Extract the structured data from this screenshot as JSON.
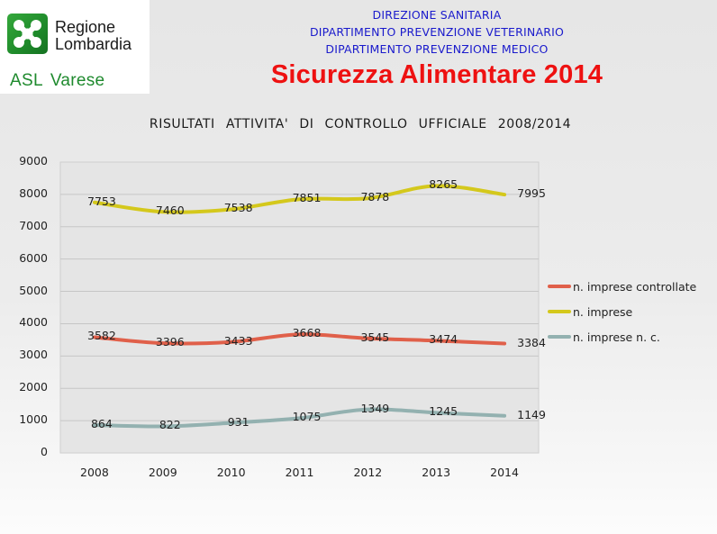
{
  "logo": {
    "line1": "Regione",
    "line2": "Lombardia",
    "asl": "ASL",
    "asl_city": "Varese",
    "brand_color": "#1f8a2e"
  },
  "header": {
    "lines": [
      "DIREZIONE SANITARIA",
      "DIPARTIMENTO PREVENZIONE VETERINARIO",
      "DIPARTIMENTO PREVENZIONE MEDICO"
    ],
    "title": "Sicurezza Alimentare 2014",
    "title_color": "#ee1111",
    "lines_color": "#1a1acc"
  },
  "chart_data": {
    "type": "line",
    "title": "RISULTATI  ATTIVITA'  DI  CONTROLLO  UFFICIALE  2008/2014",
    "xlabel": "",
    "ylabel": "",
    "ylim": [
      0,
      9000
    ],
    "yticks": [
      "0",
      "1000",
      "2000",
      "3000",
      "4000",
      "5000",
      "6000",
      "7000",
      "8000",
      "9000"
    ],
    "grid": true,
    "legend_position": "right",
    "categories": [
      "2008",
      "2009",
      "2010",
      "2011",
      "2012",
      "2013",
      "2014"
    ],
    "series": [
      {
        "name": "n. imprese controllate",
        "color": "#e0604a",
        "values": [
          3582,
          3396,
          3433,
          3668,
          3545,
          3474,
          3384
        ]
      },
      {
        "name": "n. imprese",
        "color": "#d4c81c",
        "values": [
          7753,
          7460,
          7538,
          7851,
          7878,
          8265,
          7995
        ]
      },
      {
        "name": "n. imprese n. c.",
        "color": "#93b1b0",
        "values": [
          864,
          822,
          931,
          1075,
          1349,
          1245,
          1149
        ]
      }
    ]
  }
}
